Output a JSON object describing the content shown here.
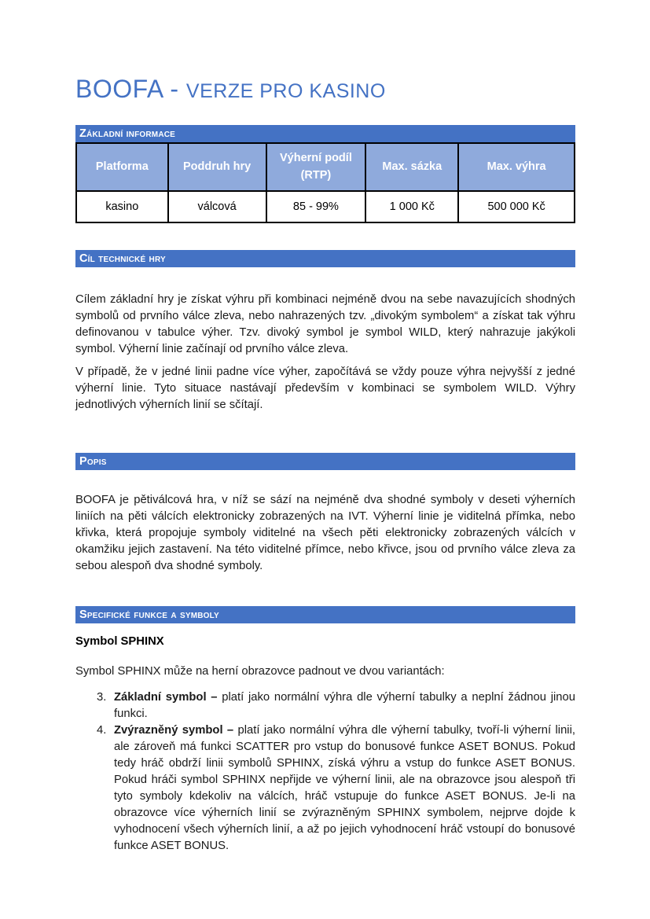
{
  "title": {
    "main": "BOOFA - ",
    "sub": "VERZE PRO KASINO"
  },
  "colors": {
    "accent_blue": "#4472C4",
    "table_header_fill": "#8FAADC",
    "table_border": "#000000",
    "title_blue": "#4472C4"
  },
  "sections": {
    "zakladni_informace": {
      "heading": "Základní informace",
      "table": {
        "headers": [
          "Platforma",
          "Poddruh hry",
          "Výherní podíl (RTP)",
          "Max. sázka",
          "Max. výhra"
        ],
        "rows": [
          [
            "kasino",
            "válcová",
            "85 - 99%",
            "1 000 Kč",
            "500 000 Kč"
          ]
        ]
      }
    },
    "cil": {
      "heading": "Cíl technické hry",
      "paragraphs": [
        "Cílem základní hry je získat výhru při kombinaci nejméně dvou na sebe navazujících shodných symbolů od prvního válce zleva, nebo nahrazených tzv. „divokým symbolem“ a získat tak výhru definovanou v tabulce výher. Tzv. divoký symbol je symbol WILD, který nahrazuje jakýkoli symbol. Výherní linie začínají od prvního válce zleva.",
        "V případě, že v jedné linii padne více výher, započítává se vždy pouze výhra nejvyšší z jedné výherní linie. Tyto situace nastávají především v kombinaci se symbolem WILD. Výhry jednotlivých výherních linií se sčítají."
      ]
    },
    "popis": {
      "heading": "Popis",
      "paragraphs": [
        "BOOFA je pětiválcová hra, v níž se sází na nejméně dva shodné symboly v deseti výherních liniích na pěti válcích elektronicky zobrazených na IVT. Výherní linie je viditelná přímka, nebo křivka, která propojuje symboly viditelné na všech pěti elektronicky zobrazených válcích v okamžiku jejich zastavení. Na této viditelné přímce, nebo křivce, jsou od prvního válce zleva za sebou alespoň dva shodné symboly."
      ]
    },
    "specificke": {
      "heading": "Specifické funkce a symboly",
      "subheading": "Symbol SPHINX",
      "lead": "Symbol SPHINX může na herní obrazovce padnout ve dvou variantách:",
      "list": [
        {
          "number": "3.",
          "bold": "Základní symbol –",
          "text": " platí jako normální výhra dle výherní tabulky a neplní žádnou jinou funkci."
        },
        {
          "number": "4.",
          "bold": "Zvýrazněný symbol –",
          "text": " platí jako normální výhra dle výherní tabulky, tvoří-li výherní linii, ale zároveň má funkci SCATTER pro vstup do bonusové funkce ASET BONUS. Pokud tedy hráč obdrží linii symbolů SPHINX, získá výhru a vstup do funkce ASET BONUS. Pokud hráči symbol SPHINX nepřijde ve výherní linii, ale na obrazovce jsou alespoň tři tyto symboly kdekoliv na válcích, hráč vstupuje do funkce ASET BONUS. Je-li na obrazovce více výherních linií se zvýrazněným SPHINX symbolem, nejprve dojde k vyhodnocení všech výherních linií, a až po jejich vyhodnocení hráč vstoupí do bonusové funkce ASET BONUS."
        }
      ]
    }
  }
}
